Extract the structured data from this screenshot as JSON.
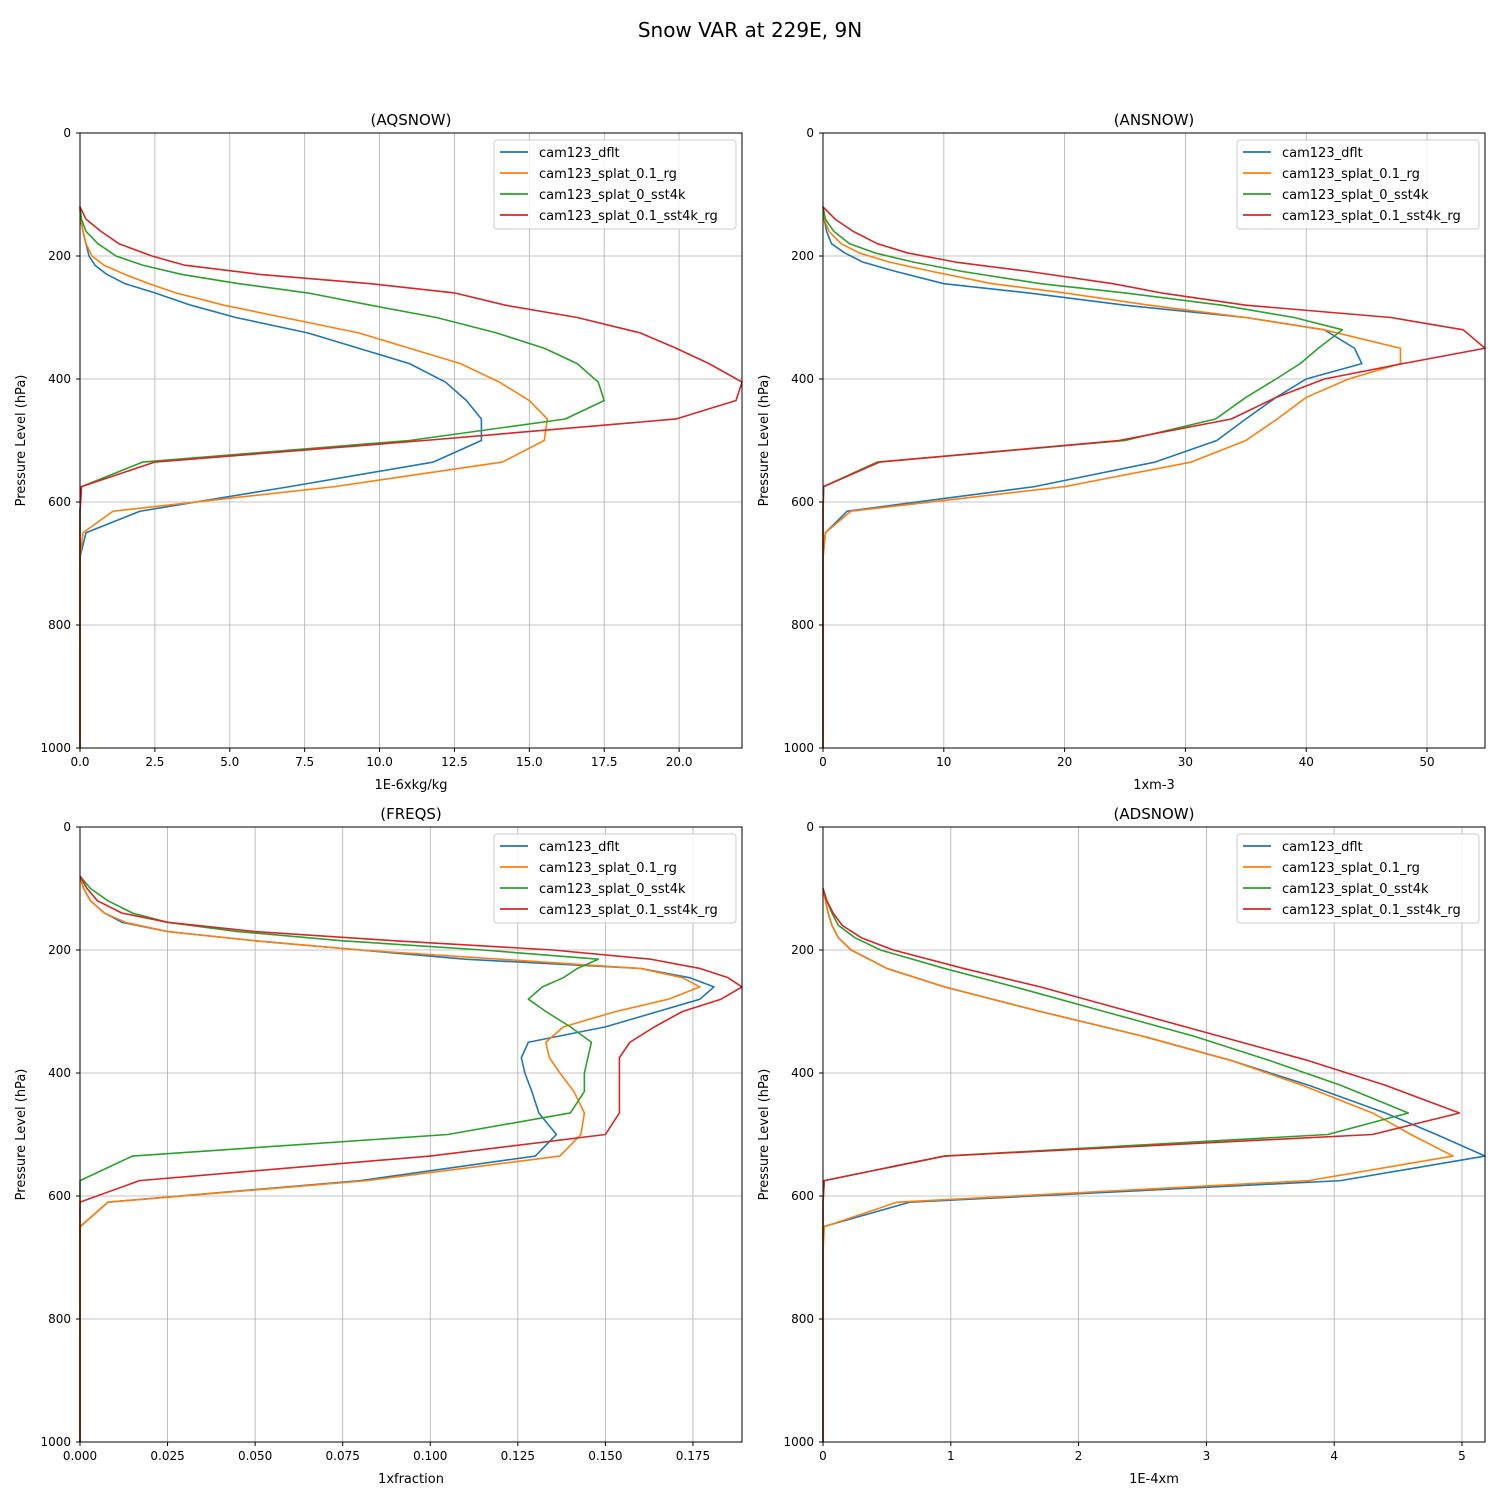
{
  "figure": {
    "title": "Snow VAR at 229E, 9N"
  },
  "series_names": [
    "cam123_dflt",
    "cam123_splat_0.1_rg",
    "cam123_splat_0_sst4k",
    "cam123_splat_0.1_sst4k_rg"
  ],
  "series_colors": [
    "#1f77b4",
    "#ff7f0e",
    "#2ca02c",
    "#d62728"
  ],
  "chart_data": [
    {
      "type": "line",
      "title": "(AQSNOW)",
      "xlabel": "1E-6xkg/kg",
      "ylabel": "Pressure Level (hPa)",
      "xlim": [
        0,
        22.1
      ],
      "ylim": [
        1000,
        0
      ],
      "xticks": [
        0,
        2.5,
        5,
        7.5,
        10,
        12.5,
        15,
        17.5,
        20
      ],
      "xtick_labels": [
        "0.0",
        "2.5",
        "5.0",
        "7.5",
        "10.0",
        "12.5",
        "15.0",
        "17.5",
        "20.0"
      ],
      "yticks": [
        0,
        200,
        400,
        600,
        800,
        1000
      ],
      "ytick_labels": [
        "0",
        "200",
        "400",
        "600",
        "800",
        "1000"
      ],
      "grid": true,
      "legend": "upper right",
      "pressure": [
        120,
        140,
        160,
        180,
        200,
        215,
        230,
        245,
        260,
        280,
        300,
        325,
        350,
        375,
        405,
        435,
        465,
        500,
        535,
        575,
        615,
        650,
        690,
        730,
        770,
        810,
        850,
        880,
        910,
        940,
        970,
        1000
      ],
      "series": [
        {
          "name": "cam123_dflt",
          "values": [
            0,
            0.02,
            0.1,
            0.2,
            0.3,
            0.5,
            0.9,
            1.5,
            2.5,
            3.7,
            5.2,
            7.6,
            9.3,
            11,
            12.2,
            12.9,
            13.4,
            13.4,
            11.8,
            7,
            2,
            0.2,
            0,
            0,
            0,
            0,
            0,
            0,
            0,
            0,
            0,
            0
          ]
        },
        {
          "name": "cam123_splat_0.1_rg",
          "values": [
            0,
            0.02,
            0.1,
            0.2,
            0.4,
            0.8,
            1.5,
            2.3,
            3.2,
            4.8,
            6.8,
            9.3,
            11,
            12.7,
            14,
            15,
            15.6,
            15.5,
            14.1,
            8.5,
            1.1,
            0.1,
            0,
            0,
            0,
            0,
            0,
            0,
            0,
            0,
            0,
            0
          ]
        },
        {
          "name": "cam123_splat_0_sst4k",
          "values": [
            0,
            0.05,
            0.2,
            0.6,
            1.2,
            2.1,
            3.4,
            5.3,
            7.6,
            9.7,
            11.9,
            13.9,
            15.5,
            16.6,
            17.3,
            17.5,
            16.2,
            11,
            2.1,
            0.05,
            0,
            0,
            0,
            0,
            0,
            0,
            0,
            0,
            0,
            0,
            0,
            0
          ]
        },
        {
          "name": "cam123_splat_0.1_sst4k_rg",
          "values": [
            0,
            0.2,
            0.7,
            1.3,
            2.4,
            3.5,
            6,
            9.7,
            12.5,
            14.2,
            16.6,
            18.7,
            19.9,
            21,
            22.1,
            21.9,
            19.9,
            11.5,
            2.5,
            0.05,
            0,
            0,
            0,
            0,
            0,
            0,
            0,
            0,
            0,
            0,
            0,
            0
          ]
        }
      ]
    },
    {
      "type": "line",
      "title": "(ANSNOW)",
      "xlabel": "1xm-3",
      "ylabel": "Pressure Level (hPa)",
      "xlim": [
        0,
        54.8
      ],
      "ylim": [
        1000,
        0
      ],
      "xticks": [
        0,
        10,
        20,
        30,
        40,
        50
      ],
      "xtick_labels": [
        "0",
        "10",
        "20",
        "30",
        "40",
        "50"
      ],
      "yticks": [
        0,
        200,
        400,
        600,
        800,
        1000
      ],
      "ytick_labels": [
        "0",
        "200",
        "400",
        "600",
        "800",
        "1000"
      ],
      "grid": true,
      "legend": "upper right",
      "pressure": [
        120,
        140,
        160,
        180,
        195,
        210,
        225,
        245,
        260,
        280,
        300,
        320,
        350,
        375,
        400,
        430,
        465,
        500,
        535,
        575,
        615,
        650,
        690,
        730,
        770,
        810,
        850,
        880,
        910,
        940,
        970,
        1000
      ],
      "series": [
        {
          "name": "cam123_dflt",
          "values": [
            0,
            0.1,
            0.3,
            0.7,
            1.8,
            3.3,
            6,
            10,
            17,
            25,
            35,
            41.5,
            44,
            44.6,
            40,
            37.5,
            35,
            32.6,
            27.5,
            17.5,
            2,
            0.2,
            0,
            0,
            0,
            0,
            0,
            0,
            0,
            0,
            0,
            0
          ]
        },
        {
          "name": "cam123_splat_0.1_rg",
          "values": [
            0,
            0.1,
            0.5,
            1.5,
            3,
            5.5,
            9,
            14,
            20,
            27,
            35,
            41.5,
            47.8,
            47.8,
            43.5,
            40,
            37.6,
            35,
            30.5,
            20,
            2.3,
            0.2,
            0,
            0,
            0,
            0,
            0,
            0,
            0,
            0,
            0,
            0
          ]
        },
        {
          "name": "cam123_splat_0_sst4k",
          "values": [
            0,
            0.2,
            0.9,
            2.2,
            4.3,
            7.5,
            11.5,
            18,
            25,
            33,
            39,
            43,
            41,
            39.5,
            37.5,
            35,
            32.5,
            25,
            4.5,
            0.05,
            0,
            0,
            0,
            0,
            0,
            0,
            0,
            0,
            0,
            0,
            0,
            0
          ]
        },
        {
          "name": "cam123_splat_0.1_sst4k_rg",
          "values": [
            0,
            1,
            2.5,
            4.5,
            7,
            11,
            17,
            24,
            28,
            35,
            47,
            53,
            54.8,
            48,
            41.5,
            37.5,
            33.8,
            24.5,
            4.7,
            0.05,
            0,
            0,
            0,
            0,
            0,
            0,
            0,
            0,
            0,
            0,
            0,
            0
          ]
        }
      ]
    },
    {
      "type": "line",
      "title": "(FREQS)",
      "xlabel": "1xfraction",
      "ylabel": "Pressure Level (hPa)",
      "xlim": [
        0,
        0.189
      ],
      "ylim": [
        1000,
        0
      ],
      "xticks": [
        0,
        0.025,
        0.05,
        0.075,
        0.1,
        0.125,
        0.15,
        0.175
      ],
      "xtick_labels": [
        "0.000",
        "0.025",
        "0.050",
        "0.075",
        "0.100",
        "0.125",
        "0.150",
        "0.175"
      ],
      "yticks": [
        0,
        200,
        400,
        600,
        800,
        1000
      ],
      "ytick_labels": [
        "0",
        "200",
        "400",
        "600",
        "800",
        "1000"
      ],
      "grid": true,
      "legend": "upper right",
      "pressure": [
        80,
        100,
        120,
        140,
        155,
        170,
        185,
        200,
        215,
        230,
        245,
        260,
        280,
        300,
        325,
        350,
        375,
        400,
        430,
        465,
        500,
        535,
        575,
        610,
        650,
        690,
        730,
        770,
        810,
        850,
        900,
        950,
        1000
      ],
      "series": [
        {
          "name": "cam123_dflt",
          "values": [
            0,
            0.001,
            0.003,
            0.007,
            0.012,
            0.025,
            0.05,
            0.08,
            0.11,
            0.16,
            0.174,
            0.181,
            0.177,
            0.165,
            0.15,
            0.128,
            0.126,
            0.127,
            0.129,
            0.131,
            0.136,
            0.13,
            0.08,
            0.008,
            0,
            0,
            0,
            0,
            0,
            0,
            0,
            0,
            0
          ]
        },
        {
          "name": "cam123_splat_0.1_rg",
          "values": [
            0,
            0.001,
            0.003,
            0.007,
            0.013,
            0.025,
            0.05,
            0.08,
            0.12,
            0.16,
            0.172,
            0.177,
            0.168,
            0.153,
            0.138,
            0.133,
            0.134,
            0.137,
            0.141,
            0.144,
            0.143,
            0.137,
            0.082,
            0.008,
            0,
            0,
            0,
            0,
            0,
            0,
            0,
            0,
            0
          ]
        },
        {
          "name": "cam123_splat_0_sst4k",
          "values": [
            0,
            0.003,
            0.008,
            0.015,
            0.025,
            0.045,
            0.075,
            0.115,
            0.148,
            0.142,
            0.138,
            0.132,
            0.128,
            0.133,
            0.14,
            0.146,
            0.145,
            0.144,
            0.144,
            0.14,
            0.105,
            0.015,
            0,
            0,
            0,
            0,
            0,
            0,
            0,
            0,
            0,
            0,
            0
          ]
        },
        {
          "name": "cam123_splat_0.1_sst4k_rg",
          "values": [
            0,
            0.002,
            0.005,
            0.012,
            0.025,
            0.05,
            0.09,
            0.135,
            0.163,
            0.177,
            0.185,
            0.189,
            0.183,
            0.172,
            0.164,
            0.157,
            0.154,
            0.154,
            0.154,
            0.154,
            0.15,
            0.1,
            0.017,
            0,
            0,
            0,
            0,
            0,
            0,
            0,
            0,
            0,
            0
          ]
        }
      ]
    },
    {
      "type": "line",
      "title": "(ADSNOW)",
      "xlabel": "1E-4xm",
      "ylabel": "Pressure Level (hPa)",
      "xlim": [
        0,
        5.18
      ],
      "ylim": [
        1000,
        0
      ],
      "xticks": [
        0,
        1,
        2,
        3,
        4,
        5
      ],
      "xtick_labels": [
        "0",
        "1",
        "2",
        "3",
        "4",
        "5"
      ],
      "yticks": [
        0,
        200,
        400,
        600,
        800,
        1000
      ],
      "ytick_labels": [
        "0",
        "200",
        "400",
        "600",
        "800",
        "1000"
      ],
      "grid": true,
      "legend": "upper right",
      "pressure": [
        100,
        120,
        140,
        160,
        180,
        200,
        230,
        260,
        300,
        340,
        380,
        420,
        465,
        500,
        535,
        575,
        610,
        650,
        690,
        730,
        770,
        810,
        850,
        900,
        950,
        1000
      ],
      "series": [
        {
          "name": "cam123_dflt",
          "values": [
            0,
            0.02,
            0.04,
            0.07,
            0.12,
            0.22,
            0.5,
            0.95,
            1.7,
            2.5,
            3.2,
            3.8,
            4.4,
            4.8,
            5.18,
            4.05,
            0.68,
            0,
            0,
            0,
            0,
            0,
            0,
            0,
            0,
            0
          ]
        },
        {
          "name": "cam123_splat_0.1_rg",
          "values": [
            0,
            0.02,
            0.04,
            0.07,
            0.12,
            0.22,
            0.5,
            0.95,
            1.7,
            2.5,
            3.2,
            3.75,
            4.3,
            4.6,
            4.93,
            3.8,
            0.58,
            0.01,
            0,
            0,
            0,
            0,
            0,
            0,
            0,
            0
          ]
        },
        {
          "name": "cam123_splat_0_sst4k",
          "values": [
            0,
            0.03,
            0.07,
            0.12,
            0.25,
            0.45,
            0.95,
            1.5,
            2.2,
            2.9,
            3.5,
            4.05,
            4.58,
            3.95,
            0.95,
            0.01,
            0,
            0,
            0,
            0,
            0,
            0,
            0,
            0,
            0,
            0
          ]
        },
        {
          "name": "cam123_splat_0.1_sst4k_rg",
          "values": [
            0,
            0.03,
            0.08,
            0.15,
            0.3,
            0.55,
            1.1,
            1.7,
            2.4,
            3.1,
            3.8,
            4.4,
            4.98,
            4.3,
            0.95,
            0.01,
            0,
            0,
            0,
            0,
            0,
            0,
            0,
            0,
            0,
            0
          ]
        }
      ]
    }
  ]
}
